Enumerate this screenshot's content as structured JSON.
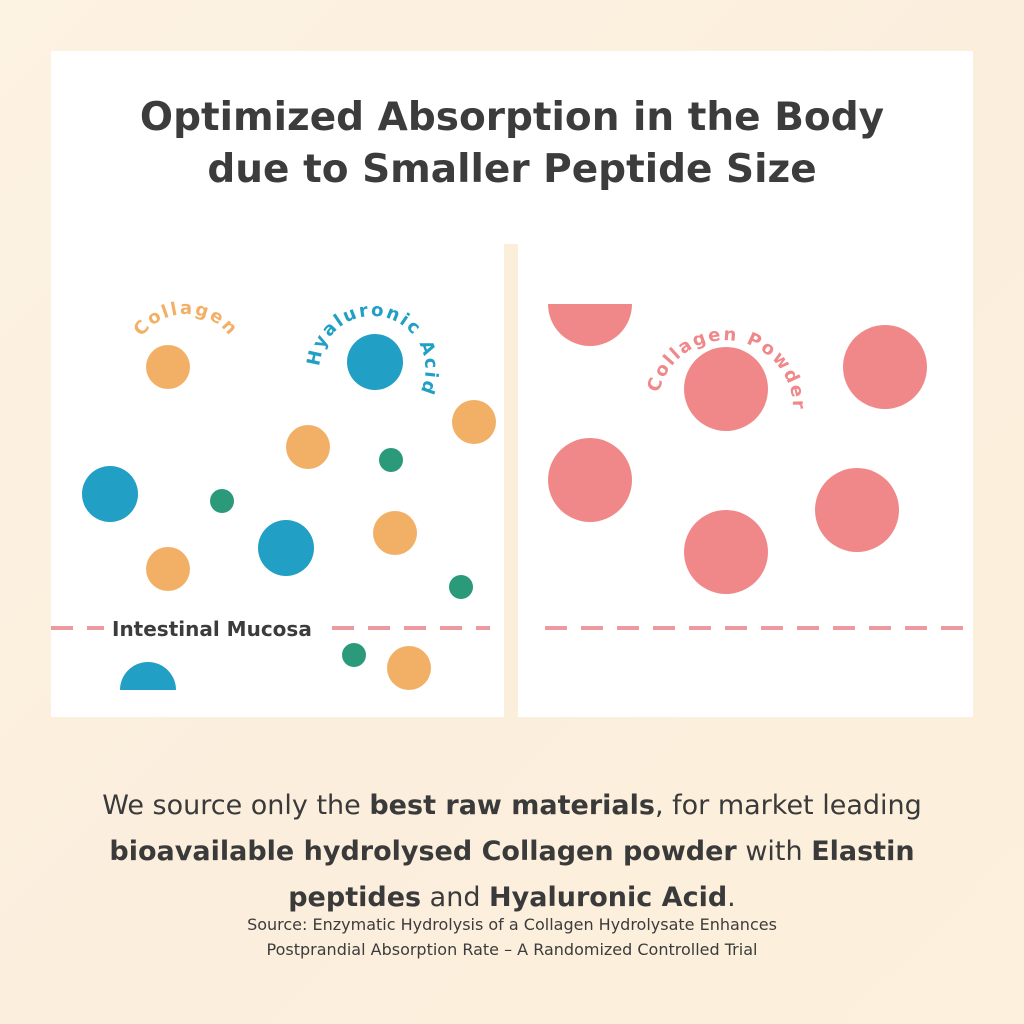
{
  "title": {
    "line1": "Optimized Absorption in the Body",
    "line2": "due to Smaller Peptide Size"
  },
  "left_panel": {
    "collagen_label": "Collagen",
    "hyaluronic_label": "Hyaluronic Acid",
    "mucosa_label": "Intestinal Mucosa"
  },
  "right_panel": {
    "collagen_powder_label": "Collagen Powder"
  },
  "tagline": {
    "p1": "We source only the ",
    "b1": "best raw materials",
    "p2": ", for market leading ",
    "b2": "bioavailable hydrolysed Collagen powder",
    "p3": " with ",
    "b3": "Elastin peptides",
    "p4": " and ",
    "b4": "Hyaluronic Acid",
    "p5": "."
  },
  "source": {
    "line1": "Source: Enzymatic Hydrolysis of a Collagen Hydrolysate Enhances",
    "line2": "Postprandial Absorption Rate – A Randomized Controlled Trial"
  },
  "colors": {
    "collagen": "#f2b066",
    "hyaluronic": "#219fc4",
    "elastin": "#2a9a7a",
    "collagen_powder": "#f0888a",
    "mucosa_line": "#ec9aa0",
    "text_dark": "#3c3c3c"
  }
}
